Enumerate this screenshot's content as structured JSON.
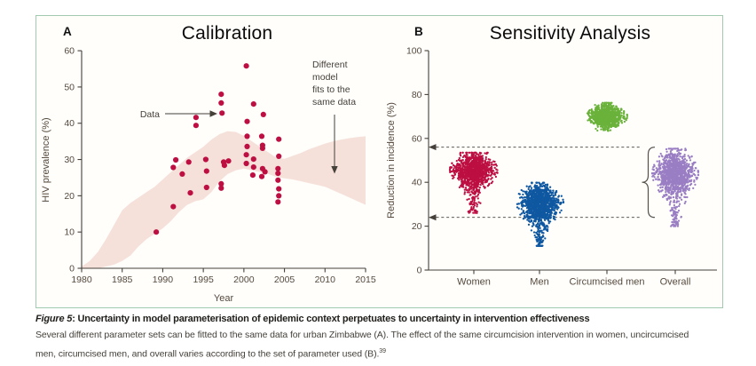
{
  "figure": {
    "panels": {
      "a": {
        "letter": "A",
        "title": "Calibration"
      },
      "b": {
        "letter": "B",
        "title": "Sensitivity Analysis"
      }
    }
  },
  "caption": {
    "figure_label": "Figure 5",
    "separator": ": ",
    "heading": "Uncertainty in model parameterisation of epidemic context perpetuates to uncertainty in intervention effectiveness",
    "body_line_1": "Several different parameter sets can be fitted to the same data for urban Zimbabwe (A). The effect of the same circumcision intervention in women, uncircumcised",
    "body_line_2": "men, circumcised men, and overall varies according to the set of parameter used (B).",
    "reference_superscript": "39"
  },
  "colors": {
    "frame_border": "#a2cab0",
    "axis": "#45403a",
    "tick_text": "#55493d",
    "panel_title": "#0b0b0b",
    "annotation_text": "#45403a",
    "calibration_point": "#bd0f42",
    "model_band": "#f6e1da",
    "dashed_line": "#45403a",
    "brace": "#55504a"
  },
  "chart_data": [
    {
      "type": "scatter",
      "panel": "A",
      "title": "Calibration",
      "xlabel": "Year",
      "ylabel": "HIV prevalence (%)",
      "xlim": [
        1980,
        2015
      ],
      "ylim": [
        0,
        60
      ],
      "xticks": [
        1980,
        1985,
        1990,
        1995,
        2000,
        2005,
        2010,
        2015
      ],
      "yticks": [
        0,
        10,
        20,
        30,
        40,
        50,
        60
      ],
      "point_color": "#bd0f42",
      "band_color": "#f6e1da",
      "annotations": {
        "data_label": "Data",
        "model_fits_label": "Different\nmodel\nfits to the\nsame data"
      },
      "points": [
        [
          1989.2,
          10
        ],
        [
          1991.3,
          17
        ],
        [
          1991.3,
          27.8
        ],
        [
          1991.6,
          29.9
        ],
        [
          1992.4,
          26
        ],
        [
          1993.2,
          29.3
        ],
        [
          1993.4,
          20.8
        ],
        [
          1995.3,
          30
        ],
        [
          1995.4,
          26.8
        ],
        [
          1995.4,
          22.3
        ],
        [
          1997.2,
          23.3
        ],
        [
          1997.2,
          22.1
        ],
        [
          1997.5,
          29.3
        ],
        [
          1998.1,
          29.6
        ],
        [
          1997.6,
          28.4
        ],
        [
          1994.1,
          41.6
        ],
        [
          1994.1,
          39.4
        ],
        [
          1997.2,
          48
        ],
        [
          1997.2,
          45.6
        ],
        [
          1997.3,
          42.8
        ],
        [
          2000.3,
          55.8
        ],
        [
          2001.2,
          45.3
        ],
        [
          2002.4,
          42.4
        ],
        [
          2000.4,
          40.5
        ],
        [
          2000.4,
          36.4
        ],
        [
          2002.2,
          36.4
        ],
        [
          2004.3,
          35.6
        ],
        [
          2000.4,
          33.6
        ],
        [
          2002.3,
          33.9
        ],
        [
          2002.3,
          33.1
        ],
        [
          2000.3,
          31.3
        ],
        [
          2001.2,
          30.1
        ],
        [
          2000.3,
          28.9
        ],
        [
          2001.2,
          27.9
        ],
        [
          2001.1,
          25.7
        ],
        [
          2002.3,
          27.5
        ],
        [
          2002.2,
          25.3
        ],
        [
          2002.6,
          26.6
        ],
        [
          2004.3,
          30.9
        ],
        [
          2004.2,
          27.5
        ],
        [
          2004.2,
          26.2
        ],
        [
          2004.2,
          24.3
        ],
        [
          2004.3,
          21.9
        ],
        [
          2004.3,
          20
        ],
        [
          2004.2,
          18.3
        ]
      ],
      "band": [
        [
          1980,
          0,
          0.5
        ],
        [
          1981,
          0,
          2
        ],
        [
          1982,
          0,
          4.5
        ],
        [
          1983,
          0.5,
          8
        ],
        [
          1984,
          1,
          12
        ],
        [
          1985,
          2,
          16
        ],
        [
          1986,
          3.5,
          18
        ],
        [
          1987,
          6,
          19.5
        ],
        [
          1988,
          8,
          21
        ],
        [
          1989,
          9.5,
          22.5
        ],
        [
          1990,
          11,
          24.5
        ],
        [
          1991,
          13,
          26.5
        ],
        [
          1992,
          15.5,
          28.5
        ],
        [
          1993,
          17.5,
          30.5
        ],
        [
          1994,
          18.5,
          32
        ],
        [
          1995,
          19,
          33.5
        ],
        [
          1996,
          21,
          35.5
        ],
        [
          1997,
          24,
          37
        ],
        [
          1998,
          26,
          37.8
        ],
        [
          1999,
          27,
          37.6
        ],
        [
          2000,
          27.5,
          36.5
        ],
        [
          2001,
          27,
          35
        ],
        [
          2002,
          26.5,
          33.5
        ],
        [
          2003,
          26,
          32
        ],
        [
          2004,
          25.2,
          30.5
        ],
        [
          2005,
          24.8,
          30.2
        ],
        [
          2006,
          24.5,
          31
        ],
        [
          2007,
          24,
          31.8
        ],
        [
          2008,
          23.5,
          32.8
        ],
        [
          2009,
          23,
          33.6
        ],
        [
          2010,
          22.5,
          34.4
        ],
        [
          2011,
          21.5,
          35
        ],
        [
          2012,
          20.5,
          35.5
        ],
        [
          2013,
          19.5,
          35.9
        ],
        [
          2014,
          18.5,
          36.2
        ],
        [
          2015,
          17.5,
          36.4
        ]
      ]
    },
    {
      "type": "strip",
      "panel": "B",
      "title": "Sensitivity Analysis",
      "xlabel": "",
      "ylabel": "Reduction in incidence (%)",
      "ylim": [
        0,
        100
      ],
      "yticks": [
        0,
        20,
        40,
        60,
        80,
        100
      ],
      "categories": [
        "Women",
        "Men",
        "Circumcised men",
        "Overall"
      ],
      "clusters": [
        {
          "label": "Women",
          "color": "#bd0f42",
          "mean": 45.5,
          "sd": 3.8,
          "min": 24.5,
          "max": 53.5,
          "n": 1150,
          "tail": 0.08,
          "spread": 27
        },
        {
          "label": "Men",
          "color": "#0f58a1",
          "mean": 30.5,
          "sd": 4.0,
          "min": 11.0,
          "max": 39.8,
          "n": 1200,
          "tail": 0.1,
          "spread": 27
        },
        {
          "label": "Circumcised men",
          "color": "#6ab23b",
          "mean": 70.0,
          "sd": 2.5,
          "min": 63.5,
          "max": 76.2,
          "n": 950,
          "tail": 0.0,
          "spread": 23
        },
        {
          "label": "Overall",
          "color": "#9a7ec4",
          "mean": 44.0,
          "sd": 4.8,
          "min": 20.0,
          "max": 55.3,
          "n": 1150,
          "tail": 0.09,
          "spread": 26
        }
      ],
      "guide_lines": {
        "values": [
          56,
          24
        ],
        "style": "dashed-arrow-left"
      },
      "brace": {
        "from": 56,
        "to": 24,
        "cusp": 40
      }
    }
  ]
}
